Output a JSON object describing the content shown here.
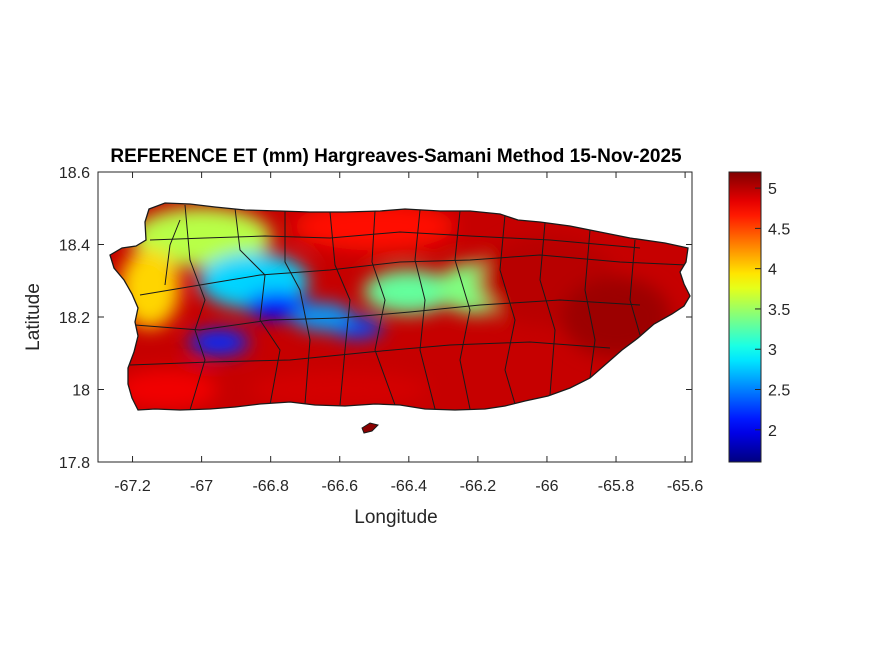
{
  "chart_data": {
    "type": "heatmap",
    "title": "REFERENCE ET (mm) Hargreaves-Samani Method  15-Nov-2025",
    "xlabel": "Longitude",
    "ylabel": "Latitude",
    "xlim": [
      -67.3,
      -65.58
    ],
    "ylim": [
      17.8,
      18.6
    ],
    "x_ticks": [
      -67.2,
      -67,
      -66.8,
      -66.6,
      -66.4,
      -66.2,
      -66,
      -65.8,
      -65.6
    ],
    "x_tick_labels": [
      "-67.2",
      "-67",
      "-66.8",
      "-66.6",
      "-66.4",
      "-66.2",
      "-66",
      "-65.8",
      "-65.6"
    ],
    "y_ticks": [
      17.8,
      18,
      18.2,
      18.4,
      18.6
    ],
    "y_tick_labels": [
      "17.8",
      "18",
      "18.2",
      "18.4",
      "18.6"
    ],
    "colorbar": {
      "colormap": "jet",
      "range": [
        1.6,
        5.2
      ],
      "ticks": [
        2,
        2.5,
        3,
        3.5,
        4,
        4.5,
        5
      ],
      "tick_labels": [
        "2",
        "2.5",
        "3",
        "3.5",
        "4",
        "4.5",
        "5"
      ],
      "colors": [
        "#00008f",
        "#0000ff",
        "#00ffff",
        "#ffff00",
        "#ff0000",
        "#800000"
      ]
    },
    "value_zones": [
      {
        "lon": -67.0,
        "lat": 18.42,
        "value": 3.6
      },
      {
        "lon": -66.85,
        "lat": 18.3,
        "value": 2.8
      },
      {
        "lon": -66.78,
        "lat": 18.23,
        "value": 2.1
      },
      {
        "lon": -66.95,
        "lat": 18.13,
        "value": 2.2
      },
      {
        "lon": -66.55,
        "lat": 18.17,
        "value": 2.3
      },
      {
        "lon": -66.65,
        "lat": 18.2,
        "value": 2.6
      },
      {
        "lon": -66.4,
        "lat": 18.27,
        "value": 3.3
      },
      {
        "lon": -66.2,
        "lat": 18.28,
        "value": 3.4
      },
      {
        "lon": -67.15,
        "lat": 18.28,
        "value": 4.0
      },
      {
        "lon": -66.5,
        "lat": 18.45,
        "value": 4.7
      },
      {
        "lon": -66.0,
        "lat": 18.3,
        "value": 5.0
      },
      {
        "lon": -65.8,
        "lat": 18.2,
        "value": 5.1
      },
      {
        "lon": -66.6,
        "lat": 18.0,
        "value": 4.9
      },
      {
        "lon": -67.1,
        "lat": 18.0,
        "value": 4.8
      }
    ]
  }
}
